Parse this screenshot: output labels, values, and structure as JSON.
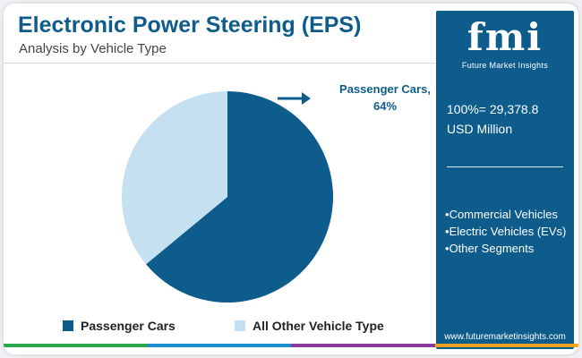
{
  "header": {
    "title": "Electronic Power Steering (EPS)",
    "subtitle": "Analysis by Vehicle Type"
  },
  "chart_data": {
    "type": "pie",
    "categories": [
      "Passenger Cars",
      "All Other Vehicle Type"
    ],
    "values": [
      64,
      36
    ],
    "unit": "%",
    "colors": [
      "#0e5c8c",
      "#c5e0f0"
    ],
    "annotations": [
      {
        "category": "Passenger Cars",
        "text_line1": "Passenger Cars,",
        "text_line2": "64%"
      }
    ],
    "legend_placement": "bottom"
  },
  "sidebar": {
    "logo_text": "fmi",
    "logo_subtitle": "Future Market Insights",
    "total_line1": "100%= 29,378.8",
    "total_line2": "USD Million",
    "segments": [
      "Commercial Vehicles",
      "Electric Vehicles (EVs)",
      "Other Segments"
    ],
    "url": "www.futuremarketinsights.com"
  },
  "colors": {
    "brand_blue": "#0e5c8c",
    "light_blue": "#c5e0f0",
    "bottom_bar": [
      "#2aa84a",
      "#1b8fd0",
      "#8a3b9a",
      "#f0a020"
    ]
  }
}
